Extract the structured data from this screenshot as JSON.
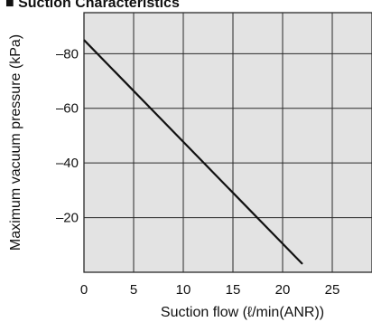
{
  "chart_data": {
    "type": "line",
    "title": "",
    "top_cropped_text": "■ Suction Characteristics",
    "xlabel": "Suction flow (ℓ/min(ANR))",
    "ylabel": "Maximum vacuum pressure (kPa)",
    "xlim": [
      0,
      29
    ],
    "ylim": [
      0,
      -95
    ],
    "x_ticks": [
      0,
      5,
      10,
      15,
      20,
      25
    ],
    "x_tick_labels": [
      "0",
      "5",
      "10",
      "15",
      "20",
      "25"
    ],
    "y_ticks": [
      -20,
      -40,
      -60,
      -80
    ],
    "y_tick_labels": [
      "–20",
      "–40",
      "–60",
      "–80"
    ],
    "grid": true,
    "legend": "none",
    "series": [
      {
        "x": [
          0,
          22
        ],
        "y": [
          -85,
          -3
        ]
      }
    ],
    "colors": {
      "plot_background": "#e3e3e3",
      "grid": "#2a2a2a",
      "line": "#111111"
    }
  }
}
